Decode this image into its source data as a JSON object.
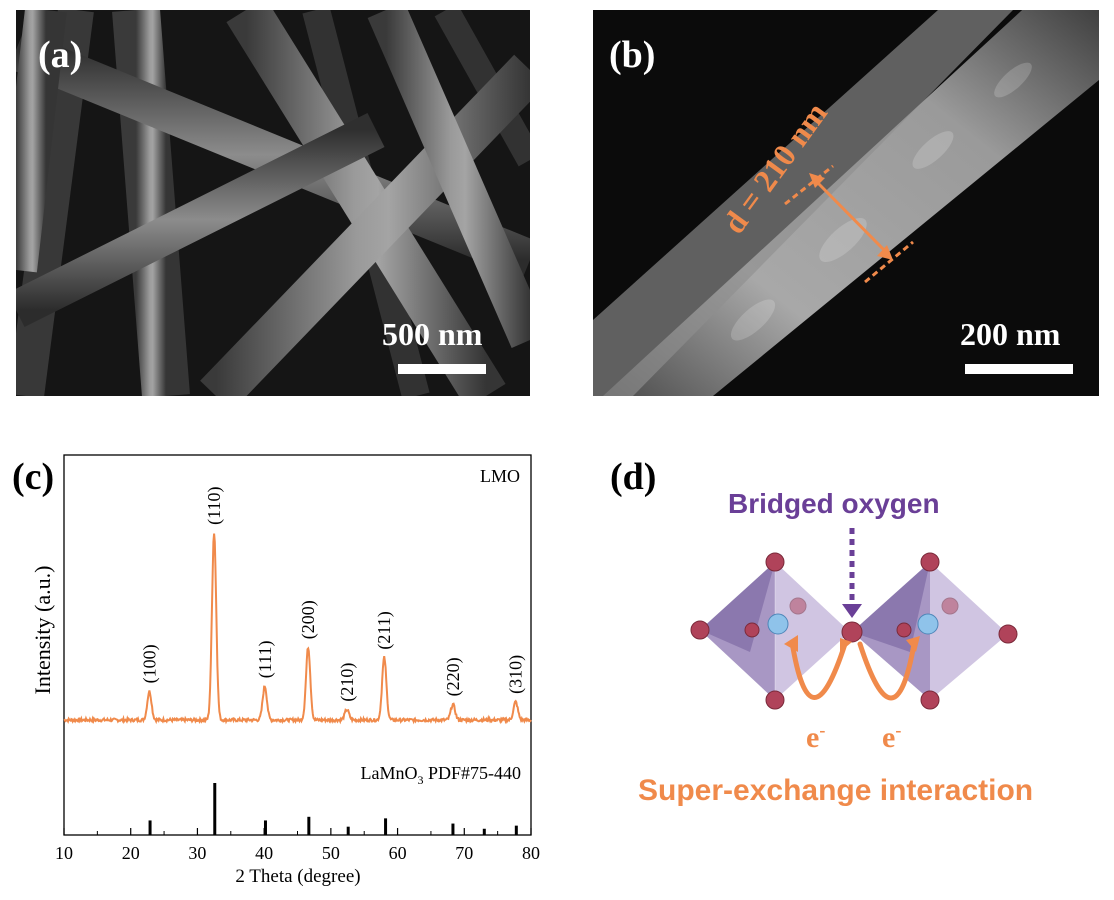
{
  "panel_a": {
    "label": "(a)",
    "scale_bar": "500 nm"
  },
  "panel_b": {
    "label": "(b)",
    "scale_bar": "200 nm",
    "diameter_annotation": "d = 210 nm"
  },
  "panel_c": {
    "label": "(c)",
    "chart_data": {
      "type": "line",
      "xlabel": "2 Theta (degree)",
      "ylabel": "Intensity (a.u.)",
      "xlim": [
        10,
        80
      ],
      "xticks": [
        10,
        20,
        30,
        40,
        50,
        60,
        70,
        80
      ],
      "series": [
        {
          "name": "LMO",
          "color": "#f08a4b",
          "peaks": [
            {
              "x": 22.8,
              "y": 0.11,
              "hkl": "(100)"
            },
            {
              "x": 32.5,
              "y": 0.72,
              "hkl": "(110)"
            },
            {
              "x": 40.1,
              "y": 0.13,
              "hkl": "(111)"
            },
            {
              "x": 46.6,
              "y": 0.28,
              "hkl": "(200)"
            },
            {
              "x": 52.4,
              "y": 0.04,
              "hkl": "(210)"
            },
            {
              "x": 58.0,
              "y": 0.24,
              "hkl": "(211)"
            },
            {
              "x": 68.3,
              "y": 0.06,
              "hkl": "(220)"
            },
            {
              "x": 77.7,
              "y": 0.07,
              "hkl": "(310)"
            }
          ]
        }
      ],
      "reference": {
        "name_main": "LaMnO",
        "name_sub": "3",
        "name_rest": " PDF#75-440",
        "color": "#000000",
        "sticks": [
          {
            "x": 22.9,
            "h": 0.28
          },
          {
            "x": 32.6,
            "h": 1.0
          },
          {
            "x": 40.2,
            "h": 0.28
          },
          {
            "x": 46.7,
            "h": 0.35
          },
          {
            "x": 52.6,
            "h": 0.16
          },
          {
            "x": 58.2,
            "h": 0.32
          },
          {
            "x": 68.3,
            "h": 0.22
          },
          {
            "x": 73.0,
            "h": 0.12
          },
          {
            "x": 77.8,
            "h": 0.18
          }
        ]
      }
    }
  },
  "panel_d": {
    "label": "(d)",
    "title": "Bridged oxygen",
    "caption": "Super-exchange interaction",
    "electron_left": "e",
    "electron_right": "e",
    "electron_sup": "-",
    "colors": {
      "purple": "#6a3f97",
      "orange": "#f08a4b",
      "octahedron": "#a48cc4",
      "ion": "#b0435a",
      "center": "#8fc3ea"
    }
  }
}
